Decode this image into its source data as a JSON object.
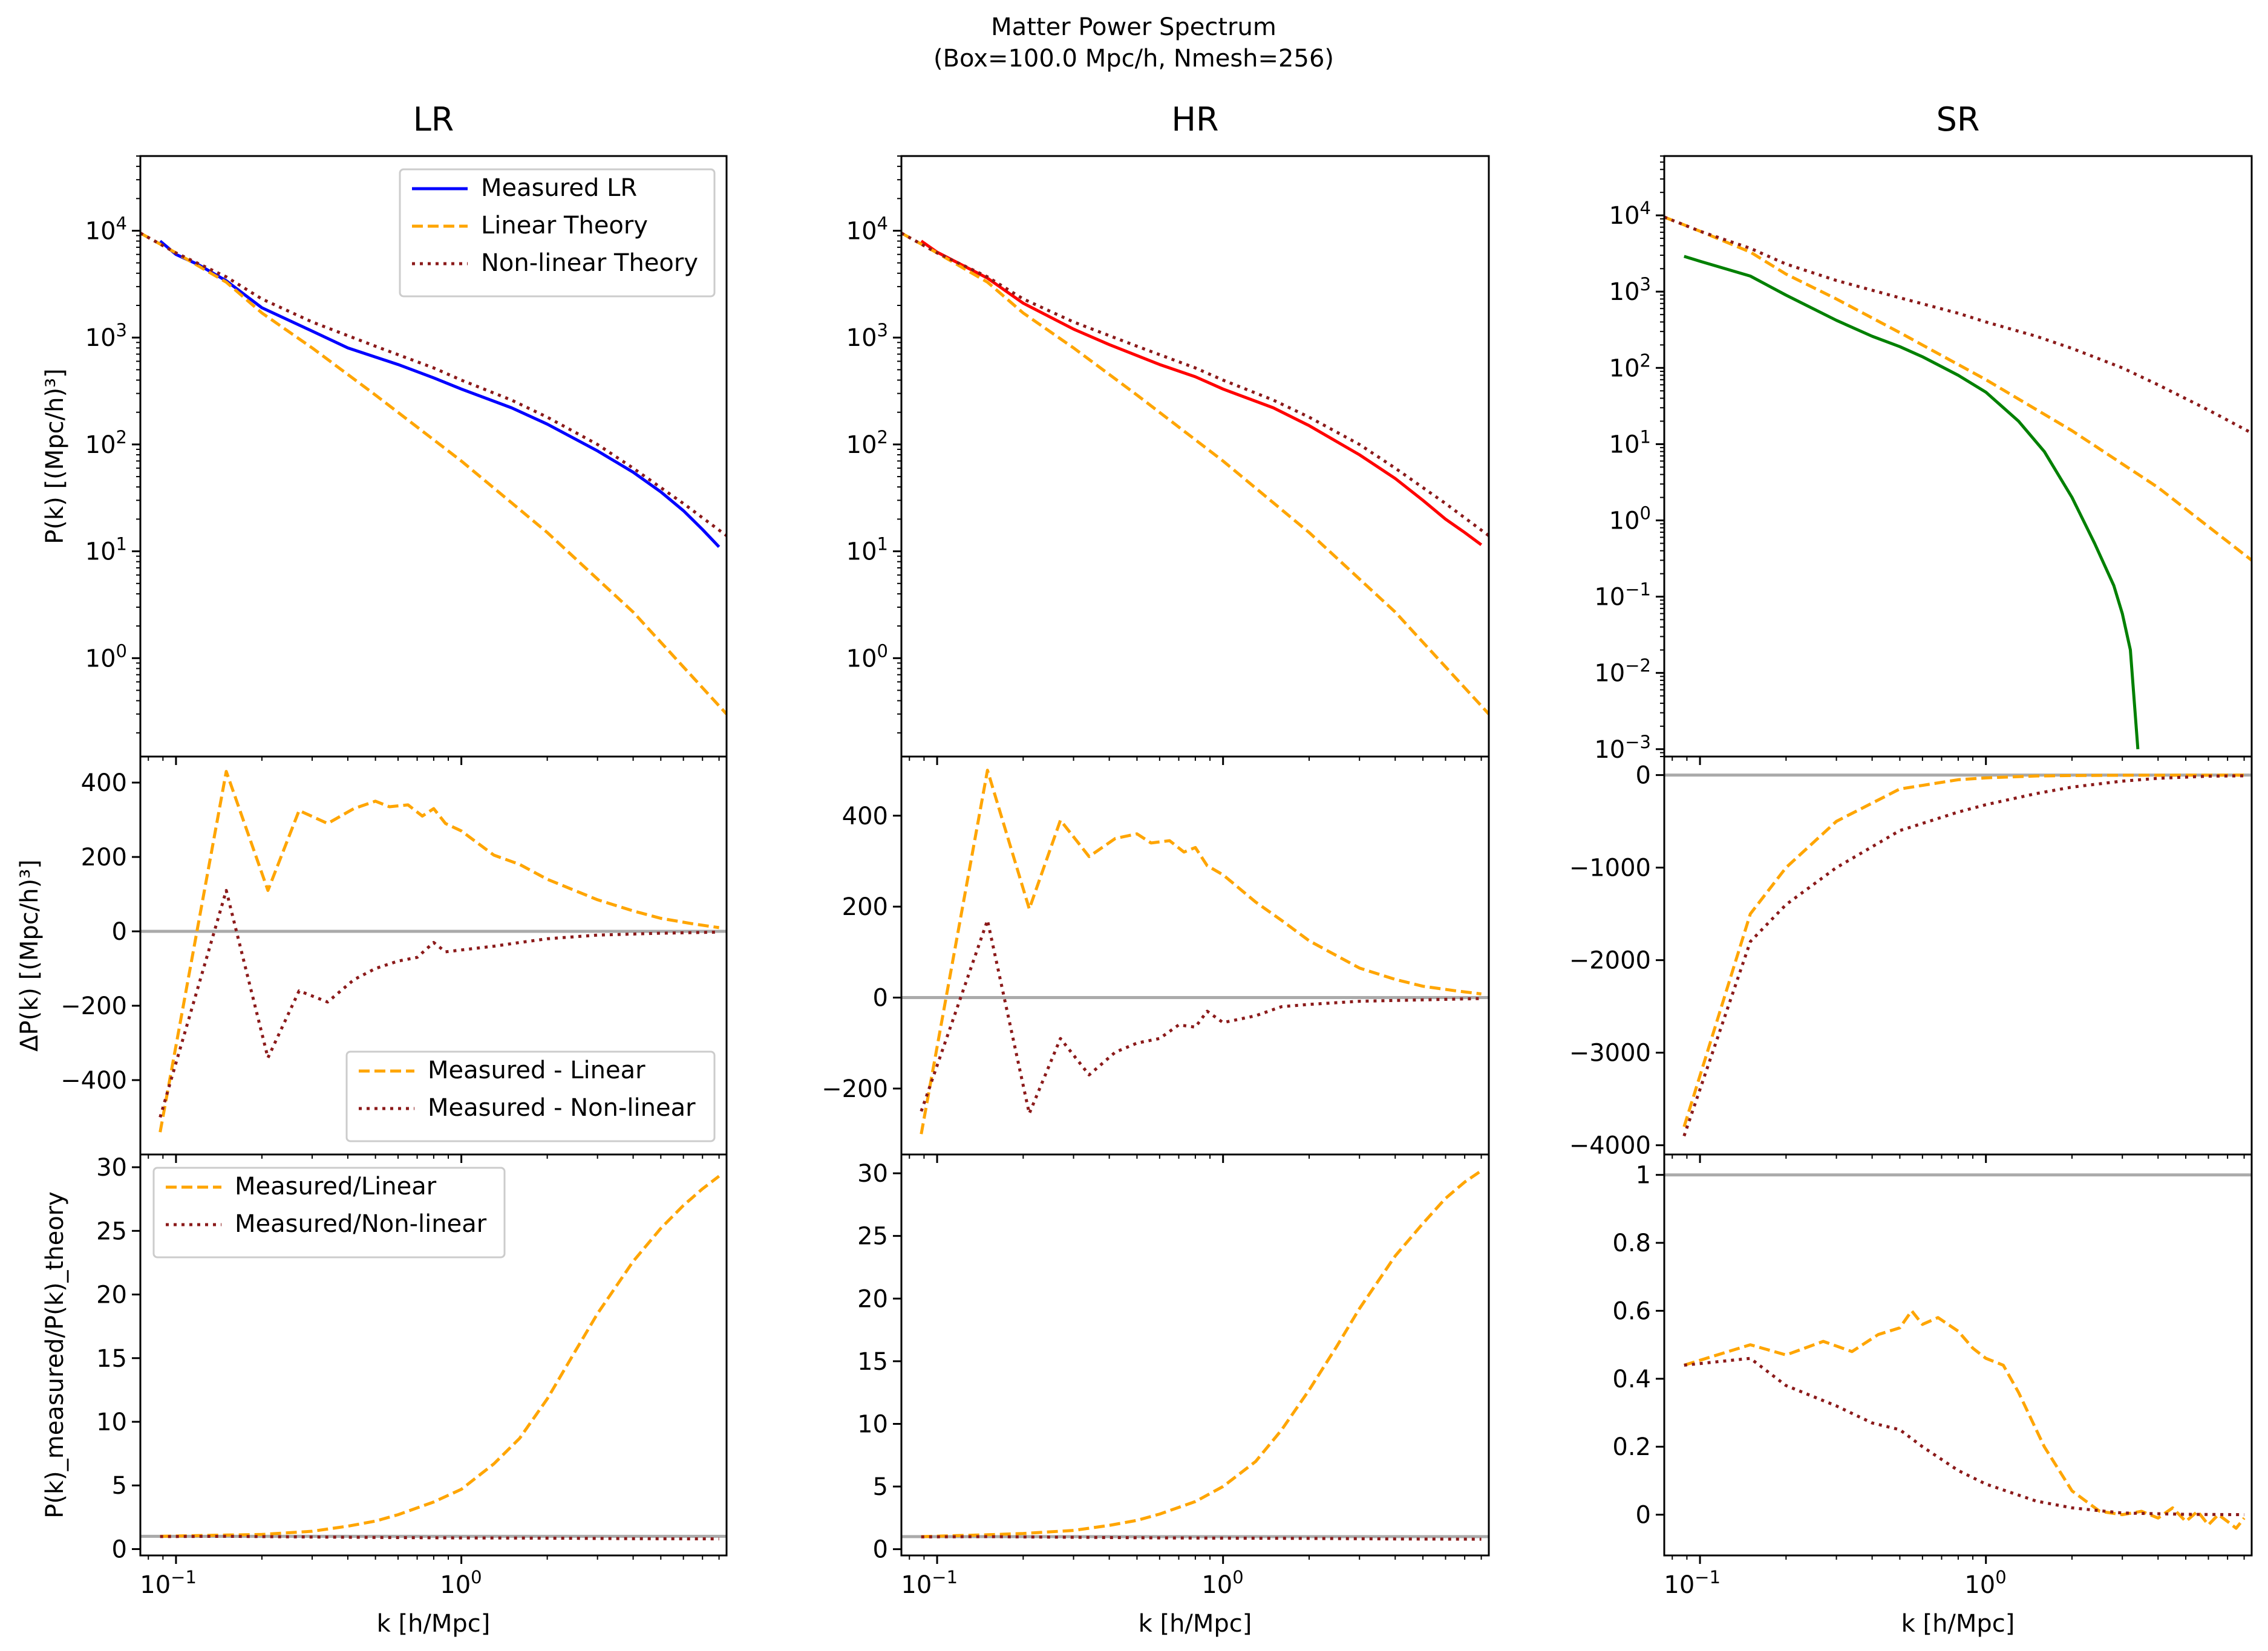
{
  "figure": {
    "title_line1": "Matter Power Spectrum",
    "title_line2": "(Box=100.0 Mpc/h, Nmesh=256)"
  },
  "colors": {
    "measured_lr": "#0000ff",
    "measured_hr": "#ff0000",
    "measured_sr": "#008000",
    "linear": "#ffa500",
    "nonlinear": "#8b1a1a",
    "reference_line": "#aaaaaa"
  },
  "chart_data": [
    {
      "type": "line",
      "panel": "LR power spectrum",
      "title": "LR",
      "ylabel": "P(k) [(Mpc/h)³]",
      "xscale": "log",
      "yscale": "log",
      "xlim": [
        0.075,
        8.5
      ],
      "ylim": [
        0.12,
        50000
      ],
      "yticks": [
        "10^0",
        "10^1",
        "10^2",
        "10^3",
        "10^4"
      ],
      "legend": {
        "placement": "upper right",
        "entries": [
          "Measured LR",
          "Linear Theory",
          "Non-linear Theory"
        ]
      },
      "series": [
        {
          "name": "Measured LR",
          "style": "solid",
          "color": "#0000ff",
          "x": [
            0.088,
            0.1,
            0.12,
            0.15,
            0.2,
            0.3,
            0.4,
            0.6,
            0.8,
            1.0,
            1.5,
            2.0,
            3.0,
            4.0,
            5.0,
            6.0,
            7.0,
            8.0
          ],
          "y": [
            8000,
            6000,
            4800,
            3400,
            1900,
            1150,
            800,
            560,
            420,
            330,
            220,
            155,
            87,
            55,
            36,
            24,
            16,
            11
          ]
        },
        {
          "name": "Linear Theory",
          "style": "dashed",
          "color": "#ffa500",
          "x": [
            0.075,
            0.1,
            0.15,
            0.2,
            0.3,
            0.5,
            1.0,
            2.0,
            4.0,
            8.5
          ],
          "y": [
            9500,
            6200,
            3300,
            1700,
            800,
            290,
            70,
            15,
            2.7,
            0.3
          ]
        },
        {
          "name": "Non-linear Theory",
          "style": "dotted",
          "color": "#8b1a1a",
          "x": [
            0.075,
            0.1,
            0.15,
            0.2,
            0.3,
            0.5,
            0.8,
            1.0,
            1.5,
            2.0,
            3.0,
            4.0,
            6.0,
            8.5
          ],
          "y": [
            9500,
            6200,
            3700,
            2300,
            1400,
            830,
            520,
            400,
            260,
            180,
            100,
            60,
            28,
            14
          ]
        }
      ]
    },
    {
      "type": "line",
      "panel": "HR power spectrum",
      "title": "HR",
      "xscale": "log",
      "yscale": "log",
      "xlim": [
        0.075,
        8.5
      ],
      "ylim": [
        0.12,
        50000
      ],
      "yticks": [
        "10^0",
        "10^1",
        "10^2",
        "10^3",
        "10^4"
      ],
      "series": [
        {
          "style": "solid",
          "color": "#ff0000",
          "x": [
            0.088,
            0.1,
            0.15,
            0.2,
            0.3,
            0.4,
            0.6,
            0.8,
            1.0,
            1.5,
            2.0,
            3.0,
            4.0,
            5.0,
            6.0,
            7.0,
            8.0
          ],
          "y": [
            8000,
            6300,
            3600,
            2100,
            1200,
            860,
            560,
            430,
            330,
            220,
            150,
            80,
            48,
            30,
            20,
            15,
            11.5
          ]
        },
        {
          "style": "dashed",
          "color": "#ffa500",
          "x": [
            0.075,
            0.1,
            0.15,
            0.2,
            0.3,
            0.5,
            1.0,
            2.0,
            4.0,
            8.5
          ],
          "y": [
            9500,
            6200,
            3300,
            1700,
            800,
            290,
            70,
            15,
            2.7,
            0.3
          ]
        },
        {
          "style": "dotted",
          "color": "#8b1a1a",
          "x": [
            0.075,
            0.1,
            0.15,
            0.2,
            0.3,
            0.5,
            0.8,
            1.0,
            1.5,
            2.0,
            3.0,
            4.0,
            6.0,
            8.5
          ],
          "y": [
            9500,
            6200,
            3700,
            2300,
            1400,
            830,
            520,
            400,
            260,
            180,
            100,
            60,
            28,
            14
          ]
        }
      ]
    },
    {
      "type": "line",
      "panel": "SR power spectrum",
      "title": "SR",
      "xscale": "log",
      "yscale": "log",
      "xlim": [
        0.075,
        8.5
      ],
      "ylim": [
        0.0008,
        60000
      ],
      "yticks": [
        "10^-3",
        "10^-2",
        "10^-1",
        "10^0",
        "10^1",
        "10^2",
        "10^3",
        "10^4"
      ],
      "series": [
        {
          "style": "solid",
          "color": "#008000",
          "x": [
            0.088,
            0.1,
            0.15,
            0.2,
            0.3,
            0.4,
            0.5,
            0.6,
            0.8,
            1.0,
            1.3,
            1.6,
            2.0,
            2.4,
            2.8,
            3.0,
            3.2,
            3.4
          ],
          "y": [
            2900,
            2500,
            1600,
            900,
            420,
            260,
            190,
            140,
            80,
            48,
            20,
            8,
            2,
            0.5,
            0.14,
            0.06,
            0.02,
            0.001
          ]
        },
        {
          "style": "dashed",
          "color": "#ffa500",
          "x": [
            0.075,
            0.1,
            0.15,
            0.2,
            0.3,
            0.5,
            1.0,
            2.0,
            4.0,
            8.5
          ],
          "y": [
            9500,
            6200,
            3300,
            1700,
            800,
            290,
            70,
            15,
            2.7,
            0.3
          ]
        },
        {
          "style": "dotted",
          "color": "#8b1a1a",
          "x": [
            0.075,
            0.1,
            0.15,
            0.2,
            0.3,
            0.5,
            0.8,
            1.0,
            1.5,
            2.0,
            3.0,
            4.0,
            6.0,
            8.5
          ],
          "y": [
            9500,
            6200,
            3700,
            2300,
            1400,
            830,
            520,
            400,
            260,
            180,
            100,
            60,
            28,
            14
          ]
        }
      ]
    },
    {
      "type": "line",
      "panel": "LR difference",
      "ylabel": "ΔP(k) [(Mpc/h)³]",
      "xscale": "log",
      "xlim": [
        0.075,
        8.5
      ],
      "ylim": [
        -600,
        470
      ],
      "yticks": [
        -400,
        -200,
        0,
        200,
        400
      ],
      "hline": 0,
      "legend": {
        "placement": "lower right",
        "entries": [
          "Measured - Linear",
          "Measured - Non-linear"
        ]
      },
      "series": [
        {
          "name": "Measured - Linear",
          "style": "dashed",
          "color": "#ffa500",
          "x": [
            0.088,
            0.15,
            0.21,
            0.27,
            0.34,
            0.42,
            0.5,
            0.56,
            0.65,
            0.73,
            0.8,
            0.88,
            1.0,
            1.3,
            1.6,
            2.0,
            3.0,
            4.0,
            5.0,
            6.5,
            8.0
          ],
          "y": [
            -540,
            430,
            110,
            325,
            290,
            330,
            350,
            335,
            340,
            310,
            330,
            290,
            270,
            205,
            180,
            140,
            85,
            55,
            35,
            20,
            10
          ]
        },
        {
          "name": "Measured - Non-linear",
          "style": "dotted",
          "color": "#8b1a1a",
          "x": [
            0.088,
            0.15,
            0.21,
            0.27,
            0.34,
            0.42,
            0.5,
            0.6,
            0.7,
            0.8,
            0.88,
            1.0,
            1.3,
            1.6,
            2.0,
            3.0,
            5.0,
            8.0
          ],
          "y": [
            -500,
            110,
            -340,
            -160,
            -190,
            -130,
            -100,
            -80,
            -70,
            -30,
            -55,
            -50,
            -40,
            -30,
            -20,
            -10,
            -5,
            -2
          ]
        }
      ]
    },
    {
      "type": "line",
      "panel": "HR difference",
      "xscale": "log",
      "xlim": [
        0.075,
        8.5
      ],
      "ylim": [
        -345,
        530
      ],
      "yticks": [
        -200,
        0,
        200,
        400
      ],
      "hline": 0,
      "series": [
        {
          "style": "dashed",
          "color": "#ffa500",
          "x": [
            0.088,
            0.15,
            0.21,
            0.27,
            0.34,
            0.42,
            0.5,
            0.56,
            0.65,
            0.73,
            0.8,
            0.88,
            1.0,
            1.3,
            1.6,
            2.0,
            3.0,
            4.0,
            5.0,
            6.5,
            8.0
          ],
          "y": [
            -300,
            500,
            195,
            390,
            310,
            350,
            360,
            340,
            345,
            320,
            330,
            290,
            270,
            210,
            170,
            125,
            65,
            40,
            25,
            15,
            8
          ]
        },
        {
          "style": "dotted",
          "color": "#8b1a1a",
          "x": [
            0.088,
            0.15,
            0.21,
            0.27,
            0.34,
            0.42,
            0.5,
            0.6,
            0.7,
            0.8,
            0.88,
            1.0,
            1.3,
            1.6,
            2.0,
            3.0,
            5.0,
            8.0
          ],
          "y": [
            -250,
            170,
            -255,
            -90,
            -170,
            -120,
            -100,
            -90,
            -60,
            -65,
            -30,
            -55,
            -40,
            -20,
            -15,
            -8,
            -5,
            -2
          ]
        }
      ]
    },
    {
      "type": "line",
      "panel": "SR difference",
      "xscale": "log",
      "xlim": [
        0.075,
        8.5
      ],
      "ylim": [
        -4100,
        200
      ],
      "yticks": [
        -4000,
        -3000,
        -2000,
        -1000,
        0
      ],
      "hline": 0,
      "series": [
        {
          "style": "dashed",
          "color": "#ffa500",
          "x": [
            0.088,
            0.15,
            0.2,
            0.3,
            0.5,
            0.8,
            1.0,
            1.5,
            2.0,
            3.0,
            5.0,
            8.0
          ],
          "y": [
            -3800,
            -1500,
            -1000,
            -500,
            -150,
            -50,
            -30,
            -10,
            -5,
            -2,
            -1,
            0
          ]
        },
        {
          "style": "dotted",
          "color": "#8b1a1a",
          "x": [
            0.088,
            0.15,
            0.2,
            0.3,
            0.5,
            0.8,
            1.0,
            1.5,
            2.0,
            3.0,
            4.0,
            6.0,
            8.0
          ],
          "y": [
            -3900,
            -1800,
            -1400,
            -1000,
            -600,
            -400,
            -320,
            -200,
            -130,
            -65,
            -35,
            -12,
            -8
          ]
        }
      ]
    },
    {
      "type": "line",
      "panel": "LR ratio",
      "ylabel": "P(k)_measured/P(k)_theory",
      "xlabel": "k [h/Mpc]",
      "xscale": "log",
      "xlim": [
        0.075,
        8.5
      ],
      "ylim": [
        -0.5,
        31
      ],
      "yticks": [
        0,
        5,
        10,
        15,
        20,
        25,
        30
      ],
      "xticks": [
        "10^-1",
        "10^0"
      ],
      "hline": 1,
      "legend": {
        "placement": "upper left",
        "entries": [
          "Measured/Linear",
          "Measured/Non-linear"
        ]
      },
      "series": [
        {
          "name": "Measured/Linear",
          "style": "dashed",
          "color": "#ffa500",
          "x": [
            0.088,
            0.15,
            0.2,
            0.3,
            0.4,
            0.5,
            0.6,
            0.8,
            1.0,
            1.3,
            1.6,
            2.0,
            2.5,
            3.0,
            4.0,
            5.0,
            6.0,
            7.0,
            8.0
          ],
          "y": [
            1.0,
            1.1,
            1.15,
            1.4,
            1.8,
            2.2,
            2.7,
            3.7,
            4.7,
            6.7,
            8.7,
            11.8,
            15.5,
            18.5,
            22.6,
            25.2,
            27.0,
            28.3,
            29.3
          ]
        },
        {
          "name": "Measured/Non-linear",
          "style": "dotted",
          "color": "#8b1a1a",
          "x": [
            0.088,
            0.15,
            0.3,
            0.6,
            1.0,
            2.0,
            4.0,
            8.0
          ],
          "y": [
            0.98,
            1.0,
            0.95,
            0.9,
            0.88,
            0.86,
            0.82,
            0.8
          ]
        }
      ]
    },
    {
      "type": "line",
      "panel": "HR ratio",
      "xlabel": "k [h/Mpc]",
      "xscale": "log",
      "xlim": [
        0.075,
        8.5
      ],
      "ylim": [
        -0.5,
        31.5
      ],
      "yticks": [
        0,
        5,
        10,
        15,
        20,
        25,
        30
      ],
      "xticks": [
        "10^-1",
        "10^0"
      ],
      "hline": 1,
      "series": [
        {
          "style": "dashed",
          "color": "#ffa500",
          "x": [
            0.088,
            0.15,
            0.2,
            0.3,
            0.4,
            0.5,
            0.6,
            0.8,
            1.0,
            1.3,
            1.6,
            2.0,
            2.5,
            3.0,
            4.0,
            5.0,
            6.0,
            7.0,
            8.0
          ],
          "y": [
            1.0,
            1.15,
            1.25,
            1.5,
            1.9,
            2.3,
            2.8,
            3.8,
            5.0,
            7.0,
            9.5,
            12.7,
            16.2,
            19.2,
            23.4,
            26.0,
            28.0,
            29.3,
            30.2
          ]
        },
        {
          "style": "dotted",
          "color": "#8b1a1a",
          "x": [
            0.088,
            0.15,
            0.3,
            0.6,
            1.0,
            2.0,
            4.0,
            8.0
          ],
          "y": [
            0.98,
            1.0,
            0.95,
            0.9,
            0.88,
            0.86,
            0.82,
            0.8
          ]
        }
      ]
    },
    {
      "type": "line",
      "panel": "SR ratio",
      "xlabel": "k [h/Mpc]",
      "xscale": "log",
      "xlim": [
        0.075,
        8.5
      ],
      "ylim": [
        -0.12,
        1.06
      ],
      "yticks": [
        0.0,
        0.2,
        0.4,
        0.6,
        0.8,
        1.0
      ],
      "xticks": [
        "10^-1",
        "10^0"
      ],
      "hline": 1,
      "series": [
        {
          "style": "dashed",
          "color": "#ffa500",
          "x": [
            0.088,
            0.15,
            0.2,
            0.27,
            0.34,
            0.42,
            0.5,
            0.55,
            0.6,
            0.68,
            0.8,
            0.9,
            1.0,
            1.15,
            1.3,
            1.6,
            2.0,
            2.5,
            3.0,
            3.5,
            4.0,
            4.5,
            5.0,
            5.5,
            6.0,
            6.5,
            7.0,
            7.5,
            8.0
          ],
          "y": [
            0.44,
            0.5,
            0.47,
            0.51,
            0.48,
            0.53,
            0.55,
            0.6,
            0.56,
            0.58,
            0.54,
            0.49,
            0.46,
            0.44,
            0.36,
            0.2,
            0.07,
            0.01,
            0.0,
            0.01,
            -0.01,
            0.02,
            -0.02,
            0.01,
            -0.03,
            0.0,
            -0.02,
            -0.04,
            -0.01
          ]
        },
        {
          "style": "dotted",
          "color": "#8b1a1a",
          "x": [
            0.088,
            0.15,
            0.2,
            0.3,
            0.4,
            0.5,
            0.6,
            0.8,
            1.0,
            1.5,
            2.0,
            3.0,
            5.0,
            8.0
          ],
          "y": [
            0.44,
            0.46,
            0.38,
            0.32,
            0.27,
            0.25,
            0.2,
            0.13,
            0.09,
            0.04,
            0.02,
            0.005,
            0.001,
            0.0
          ]
        }
      ]
    }
  ]
}
